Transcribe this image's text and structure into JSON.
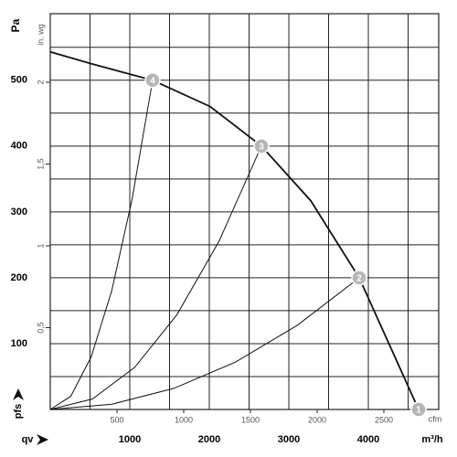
{
  "chart_data": {
    "type": "line",
    "ylabel": "Pa",
    "y2label": "in. wg",
    "xlabel": "m³/h",
    "x2label": "cfm",
    "y_symbol": "pfs",
    "x_symbol": "qv",
    "xlim": [
      0,
      4885
    ],
    "xticks": [
      1000,
      2000,
      3000,
      4000
    ],
    "ylim": [
      0,
      601
    ],
    "yticks": [
      100,
      200,
      300,
      400,
      500
    ],
    "x2lim": [
      0,
      2911
    ],
    "x2ticks": [
      500,
      1000,
      1500,
      2000,
      2500
    ],
    "y2lim": [
      0,
      2.419
    ],
    "y2ticks": [
      {
        "value": 0.5,
        "label": "0,5"
      },
      1,
      {
        "value": 1.5,
        "label": "1,5"
      },
      2
    ],
    "xgrid": [
      0,
      500,
      1000,
      1500,
      2000,
      2500,
      3000,
      3500,
      4000,
      4500
    ],
    "ygrid": [
      0,
      50,
      100,
      150,
      200,
      250,
      300,
      350,
      400,
      450,
      500,
      550
    ],
    "grid": true,
    "series": [
      {
        "color": "#111111",
        "x": [
          0,
          517,
          1287,
          2011,
          2655,
          3276,
          3885,
          4632
        ],
        "values": [
          543,
          525,
          500,
          460,
          400,
          317,
          200,
          0
        ]
      },
      {
        "color": "#111111",
        "x": [
          0,
          257,
          515,
          772,
          1030,
          1287
        ],
        "values": [
          0,
          20,
          80,
          180,
          320,
          500
        ]
      },
      {
        "color": "#111111",
        "x": [
          0,
          531,
          1062,
          1593,
          2124,
          2655
        ],
        "values": [
          0,
          16,
          64,
          144,
          256,
          400
        ]
      },
      {
        "color": "#111111",
        "x": [
          0,
          777,
          1554,
          2331,
          3108,
          3885
        ],
        "values": [
          0,
          8,
          32,
          72,
          128,
          200
        ]
      }
    ],
    "operating_points": [
      {
        "label": "1",
        "x": 4632,
        "y": 0
      },
      {
        "label": "2",
        "x": 3885,
        "y": 200
      },
      {
        "label": "3",
        "x": 2655,
        "y": 400
      },
      {
        "label": "4",
        "x": 1287,
        "y": 500
      }
    ]
  }
}
